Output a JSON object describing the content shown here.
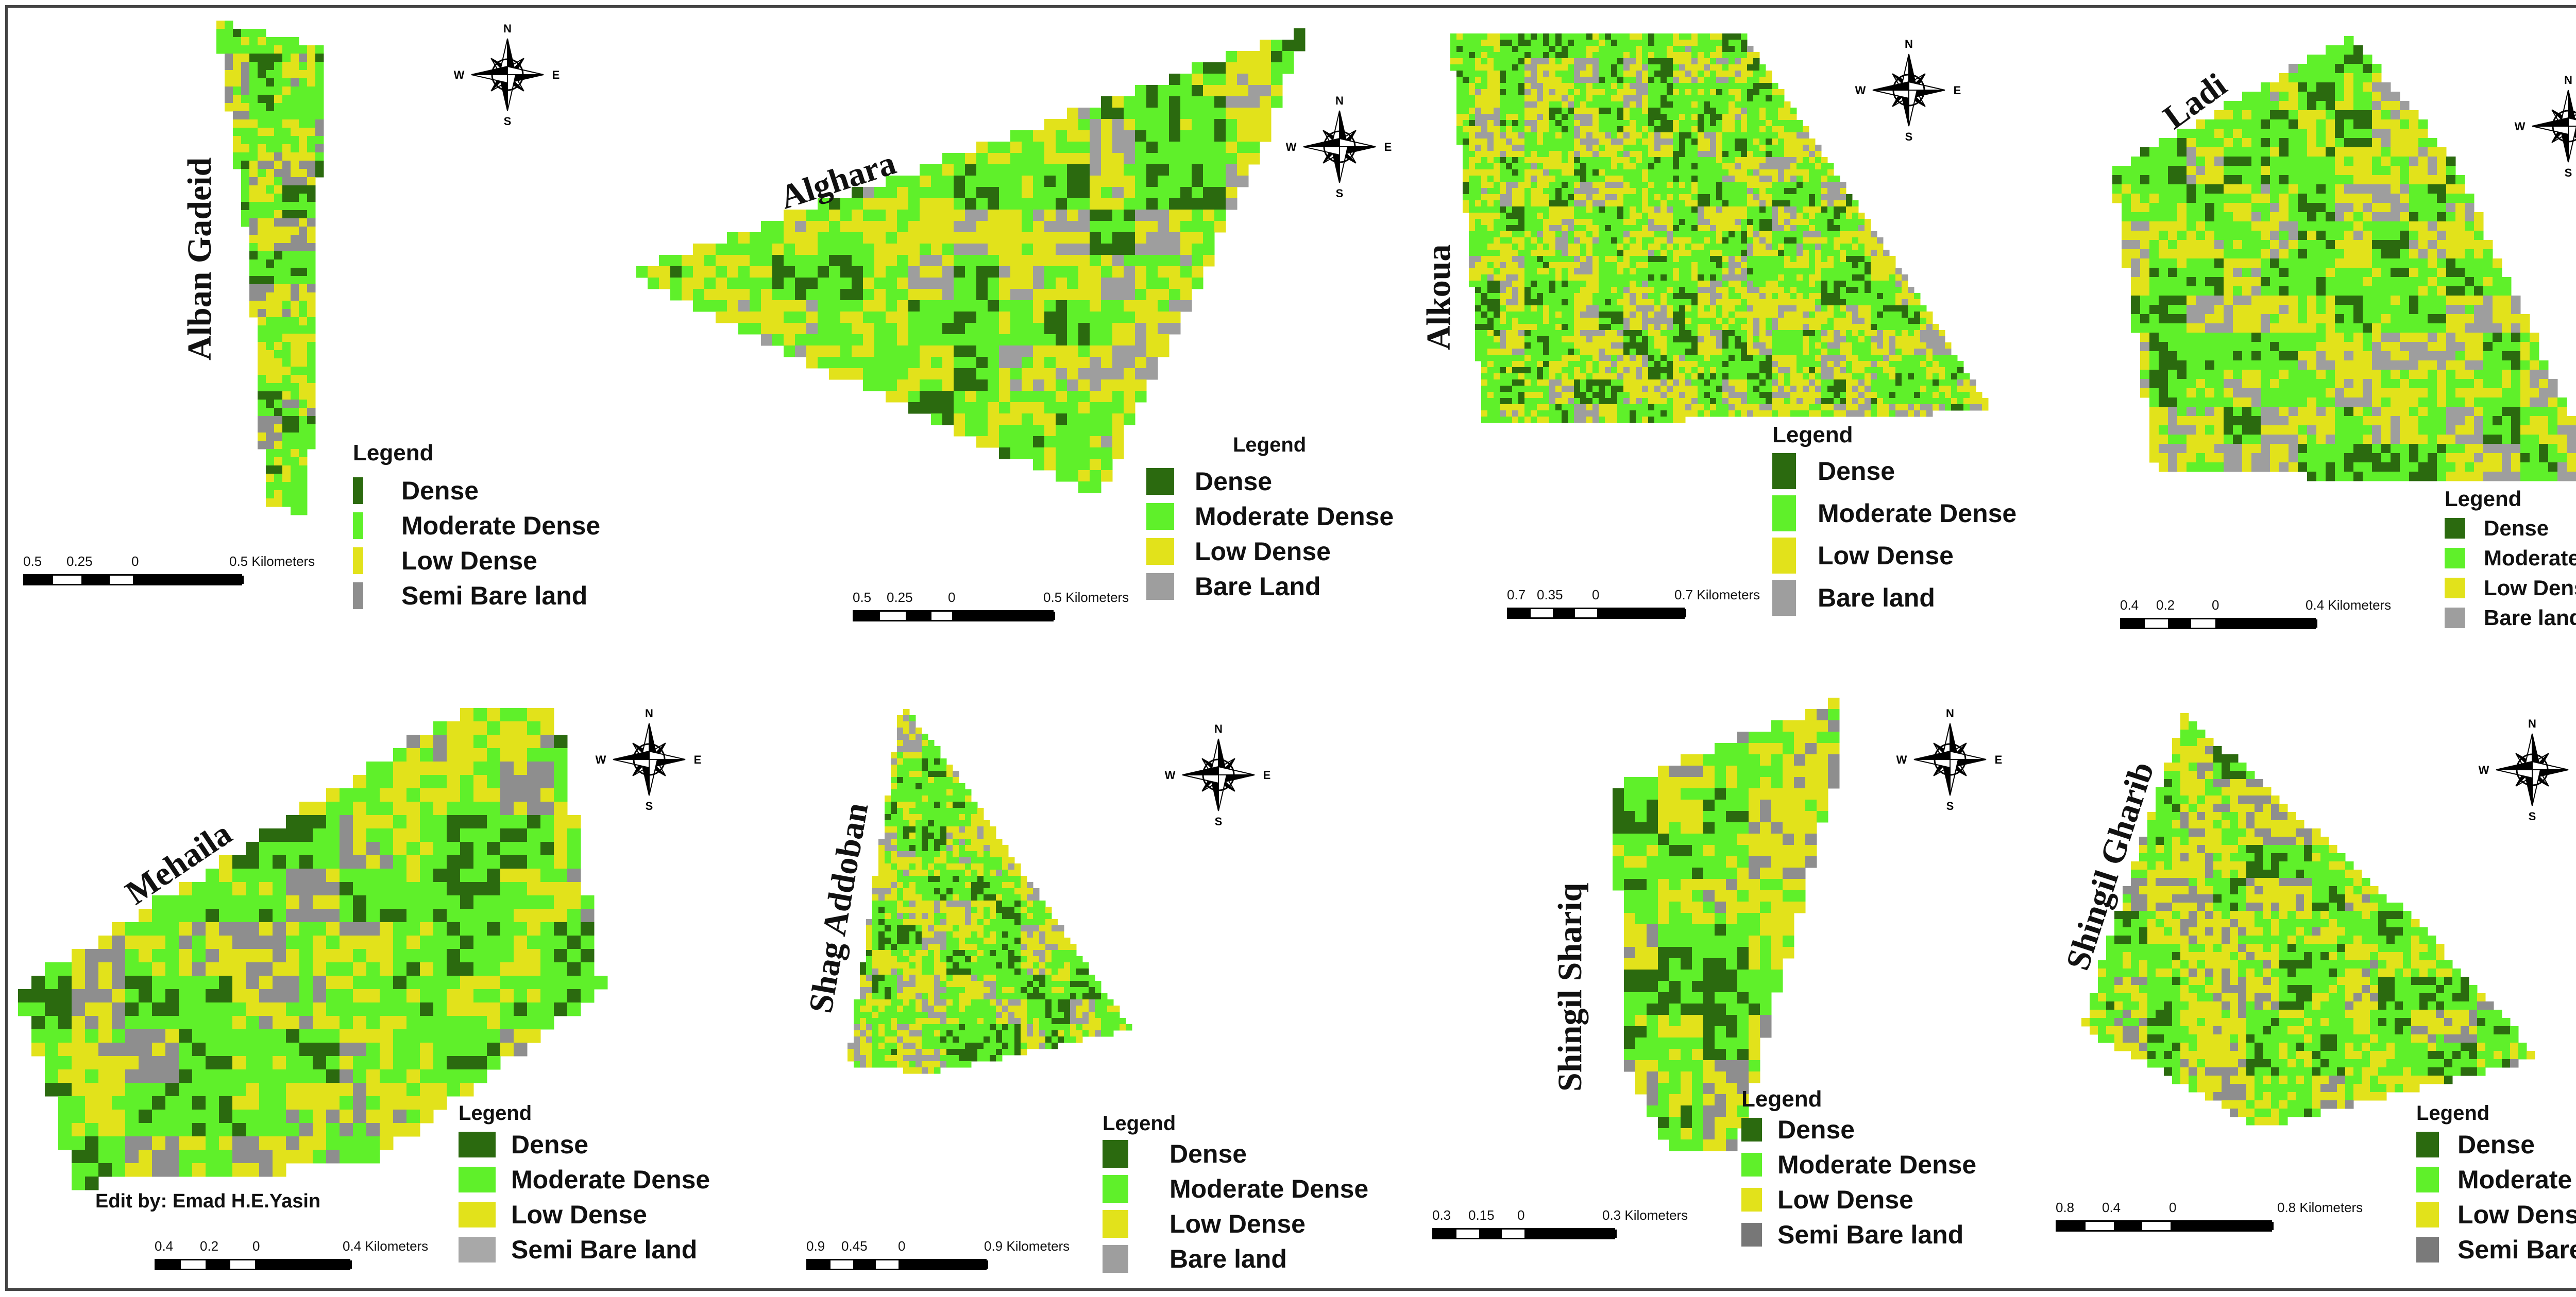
{
  "credit": "Edit by: Emad H.E.Yasin",
  "compass": {
    "n": "N",
    "s": "S",
    "e": "E",
    "w": "W"
  },
  "colors": {
    "dense": "#2b6a0f",
    "moderate_dense": "#5ff02a",
    "low_dense": "#e2e21b",
    "bare": "#9e9e9e",
    "semi_bare": "#8e8e8e"
  },
  "legend_title": "Legend",
  "maps": [
    {
      "title": "Alban Gadeid",
      "legend": [
        "Dense",
        "Moderate Dense",
        "Low Dense",
        "Semi Bare land"
      ],
      "scale": [
        "0.5",
        "0.25",
        "0",
        "0.5 Kilometers"
      ]
    },
    {
      "title": "Alghara",
      "legend": [
        "Dense",
        "Moderate Dense",
        "Low Dense",
        "Bare Land"
      ],
      "scale": [
        "0.5",
        "0.25",
        "0",
        "0.5 Kilometers"
      ]
    },
    {
      "title": "Alkoua",
      "legend": [
        "Dense",
        "Moderate Dense",
        "Low Dense",
        "Bare land"
      ],
      "scale": [
        "0.7",
        "0.35",
        "0",
        "0.7 Kilometers"
      ]
    },
    {
      "title": "Ladi",
      "legend": [
        "Dense",
        "Moderate Dense",
        "Low Dense",
        "Bare land"
      ],
      "scale": [
        "0.4",
        "0.2",
        "0",
        "0.4 Kilometers"
      ]
    },
    {
      "title": "Mehaila",
      "legend": [
        "Dense",
        "Moderate Dense",
        "Low Dense",
        "Semi Bare land"
      ],
      "scale": [
        "0.4",
        "0.2",
        "0",
        "0.4 Kilometers"
      ]
    },
    {
      "title": "Shag Addoban",
      "legend": [
        "Dense",
        "Moderate Dense",
        "Low Dense",
        "Bare land"
      ],
      "scale": [
        "0.9",
        "0.45",
        "0",
        "0.9 Kilometers"
      ]
    },
    {
      "title": "Shingil Shariq",
      "legend": [
        "Dense",
        "Moderate Dense",
        "Low Dense",
        "Semi Bare land"
      ],
      "scale": [
        "0.3",
        "0.15",
        "0",
        "0.3 Kilometers"
      ]
    },
    {
      "title": "Shingil Gharib",
      "legend": [
        "Dense",
        "Moderate Dense",
        "Low Dense",
        "Semi Bare land"
      ],
      "scale": [
        "0.8",
        "0.4",
        "0",
        "0.8 Kilometers"
      ]
    }
  ]
}
